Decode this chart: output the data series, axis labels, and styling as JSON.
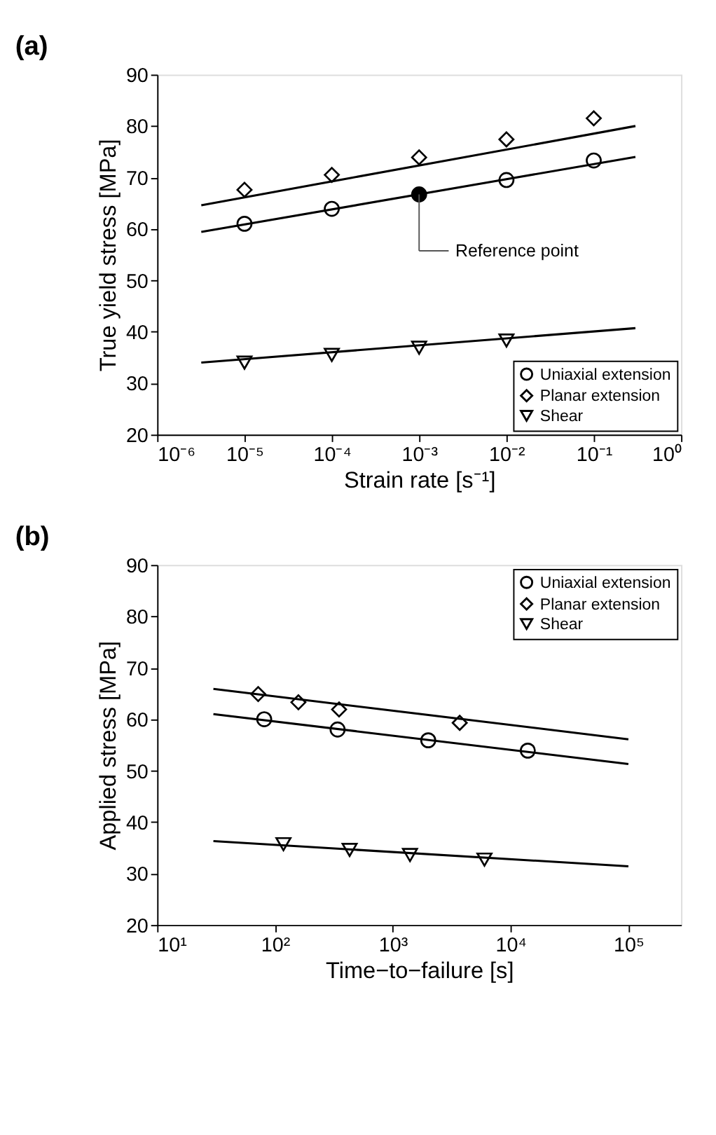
{
  "chart_data": [
    {
      "type": "scatter",
      "title": "(a)",
      "xlabel": "Strain rate [s⁻¹]",
      "ylabel": "True yield stress [MPa]",
      "log": "x",
      "grid": false,
      "legend": "bottom right",
      "xlim": [
        1e-06,
        1
      ],
      "ylim": [
        20,
        90
      ],
      "xticks": [
        {
          "value": 1e-06,
          "label": "10⁻⁶"
        },
        {
          "value": 1e-05,
          "label": "10⁻⁵"
        },
        {
          "value": 0.0001,
          "label": "10⁻⁴"
        },
        {
          "value": 0.001,
          "label": "10⁻³"
        },
        {
          "value": 0.01,
          "label": "10⁻²"
        },
        {
          "value": 0.1,
          "label": "10⁻¹"
        },
        {
          "value": 1,
          "label": "10⁰"
        }
      ],
      "yticks": [
        20,
        30,
        40,
        50,
        60,
        70,
        80,
        90
      ],
      "annotations": [
        "Reference point"
      ],
      "series": [
        {
          "name": "Uniaxial extension",
          "type": "scatter",
          "marker": "circle",
          "color": "#000000",
          "colors": [
            "#ffffff",
            "#ffffff",
            "#000000",
            "#ffffff",
            "#ffffff"
          ],
          "x": [
            1e-05,
            0.0001,
            0.001,
            0.01,
            0.1
          ],
          "values": [
            61.0,
            63.9,
            66.7,
            69.5,
            73.3
          ]
        },
        {
          "name": "Planar extension",
          "type": "scatter",
          "marker": "diamond",
          "color": "#000000",
          "x": [
            1e-05,
            0.0001,
            0.001,
            0.01,
            0.1
          ],
          "values": [
            67.6,
            70.5,
            73.9,
            77.4,
            81.5
          ]
        },
        {
          "name": "Shear",
          "type": "scatter",
          "marker": "triangle",
          "color": "#000000",
          "x": [
            1e-05,
            0.0001,
            0.001,
            0.01
          ],
          "values": [
            34.0,
            35.5,
            36.9,
            38.3
          ]
        },
        {
          "type": "line",
          "marker": "none",
          "color": "#000000",
          "x": [
            3.2e-06,
            0.3
          ],
          "values": [
            59.4,
            74.0
          ]
        },
        {
          "type": "line",
          "marker": "none",
          "color": "#000000",
          "x": [
            3.2e-06,
            0.3
          ],
          "values": [
            64.6,
            80.0
          ]
        },
        {
          "type": "line",
          "marker": "none",
          "color": "#000000",
          "x": [
            3.2e-06,
            0.3
          ],
          "values": [
            34.0,
            40.7
          ]
        }
      ]
    },
    {
      "type": "scatter",
      "title": "(b)",
      "xlabel": "Time−to−failure [s]",
      "ylabel": "Applied stress [MPa]",
      "log": "x",
      "grid": false,
      "legend": "top right",
      "xlim": [
        10,
        280000
      ],
      "ylim": [
        20,
        90
      ],
      "xticks": [
        {
          "value": 10,
          "label": "10¹"
        },
        {
          "value": 100,
          "label": "10²"
        },
        {
          "value": 1000,
          "label": "10³"
        },
        {
          "value": 10000,
          "label": "10⁴"
        },
        {
          "value": 100000,
          "label": "10⁵"
        }
      ],
      "yticks": [
        20,
        30,
        40,
        50,
        60,
        70,
        80,
        90
      ],
      "series": [
        {
          "name": "Uniaxial extension",
          "type": "scatter",
          "marker": "circle",
          "color": "#000000",
          "x": [
            81,
            340,
            2000,
            14000
          ],
          "values": [
            60.0,
            58.0,
            55.9,
            53.9
          ]
        },
        {
          "name": "Planar extension",
          "type": "scatter",
          "marker": "diamond",
          "color": "#000000",
          "x": [
            72,
            158,
            350,
            3700
          ],
          "values": [
            64.9,
            63.3,
            61.9,
            59.3
          ]
        },
        {
          "name": "Shear",
          "type": "scatter",
          "marker": "triangle",
          "color": "#000000",
          "x": [
            118,
            430,
            1400,
            6000
          ],
          "values": [
            35.7,
            34.6,
            33.6,
            32.7
          ]
        },
        {
          "type": "line",
          "marker": "none",
          "color": "#000000",
          "x": [
            30,
            100000
          ],
          "values": [
            61.0,
            51.3
          ]
        },
        {
          "type": "line",
          "marker": "none",
          "color": "#000000",
          "x": [
            30,
            100000
          ],
          "values": [
            65.9,
            56.1
          ]
        },
        {
          "type": "line",
          "marker": "none",
          "color": "#000000",
          "x": [
            30,
            100000
          ],
          "values": [
            36.3,
            31.4
          ]
        }
      ]
    }
  ]
}
